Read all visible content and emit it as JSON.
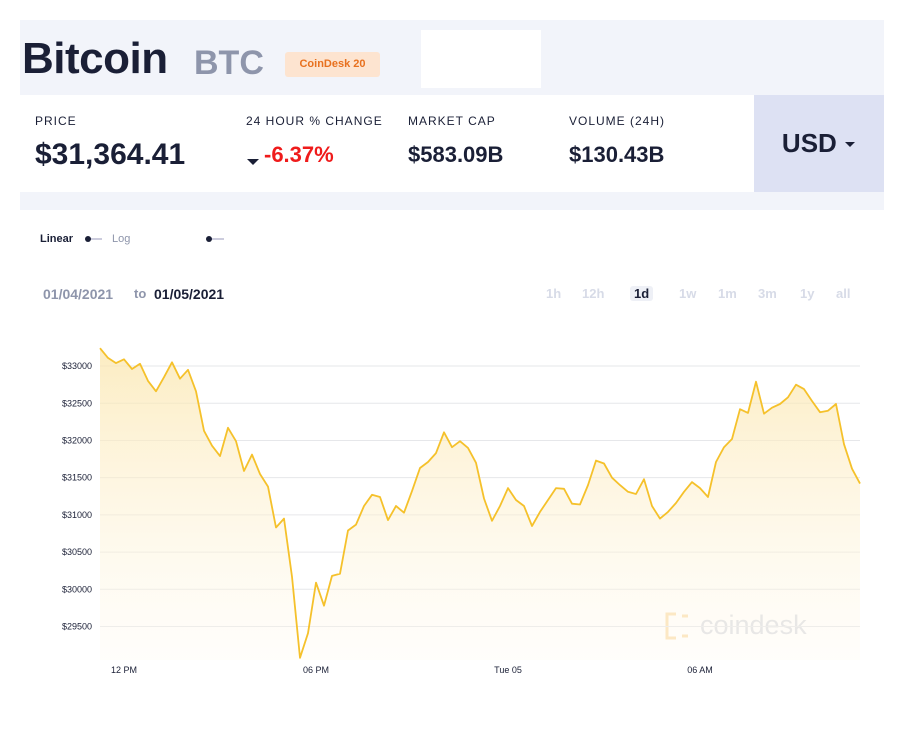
{
  "header": {
    "title": "Bitcoin",
    "symbol": "BTC",
    "badge": "CoinDesk 20"
  },
  "stats": [
    {
      "label": "PRICE",
      "value": "$31,364.41"
    },
    {
      "label": "24 HOUR % CHANGE",
      "value": "-6.37%"
    },
    {
      "label": "MARKET CAP",
      "value": "$583.09B"
    },
    {
      "label": "VOLUME (24H)",
      "value": "$130.43B"
    }
  ],
  "currency": "USD",
  "scale_toggle": {
    "linear": "Linear",
    "log": "Log"
  },
  "date_range": {
    "from": "01/04/2021",
    "separator": "to",
    "to": "01/05/2021"
  },
  "ranges": [
    "1h",
    "12h",
    "1d",
    "1w",
    "1m",
    "3m",
    "1y",
    "all"
  ],
  "watermark": "coindesk",
  "chart_data": {
    "type": "line",
    "color": "#f5c12b",
    "grid": true,
    "xlim": [
      11.25,
      35
    ],
    "ylim": [
      29050,
      33350
    ],
    "xticks": [
      {
        "value": 12,
        "label": "12 PM"
      },
      {
        "value": 18,
        "label": "06 PM"
      },
      {
        "value": 24,
        "label": "Tue 05"
      },
      {
        "value": 30,
        "label": "06 AM"
      }
    ],
    "yticks": [
      {
        "value": 29500,
        "label": "$29500"
      },
      {
        "value": 30000,
        "label": "$30000"
      },
      {
        "value": 30500,
        "label": "$30500"
      },
      {
        "value": 31000,
        "label": "$31000"
      },
      {
        "value": 31500,
        "label": "$31500"
      },
      {
        "value": 32000,
        "label": "$32000"
      },
      {
        "value": 32500,
        "label": "$32500"
      },
      {
        "value": 33000,
        "label": "$33000"
      }
    ],
    "x": [
      11.25,
      11.5,
      11.75,
      12,
      12.25,
      12.5,
      12.75,
      13,
      13.25,
      13.5,
      13.75,
      14,
      14.25,
      14.5,
      14.75,
      15,
      15.25,
      15.5,
      15.75,
      16,
      16.25,
      16.5,
      16.75,
      17,
      17.25,
      17.5,
      17.75,
      18,
      18.25,
      18.5,
      18.75,
      19,
      19.25,
      19.5,
      19.75,
      20,
      20.25,
      20.5,
      20.75,
      21,
      21.25,
      21.5,
      21.75,
      22,
      22.25,
      22.5,
      22.75,
      23,
      23.25,
      23.5,
      23.75,
      24,
      24.25,
      24.5,
      24.75,
      25,
      25.25,
      25.5,
      25.75,
      26,
      26.25,
      26.5,
      26.75,
      27,
      27.25,
      27.5,
      27.75,
      28,
      28.25,
      28.5,
      28.75,
      29,
      29.25,
      29.5,
      29.75,
      30,
      30.25,
      30.5,
      30.75,
      31,
      31.25,
      31.5,
      31.75,
      32,
      32.25,
      32.5,
      32.75,
      33,
      33.25,
      33.5,
      33.75,
      34,
      34.25,
      34.5,
      34.75,
      35
    ],
    "values": [
      33240,
      33110,
      33040,
      33090,
      32960,
      33030,
      32800,
      32660,
      32850,
      33050,
      32830,
      32950,
      32660,
      32130,
      31930,
      31790,
      32170,
      31990,
      31590,
      31810,
      31550,
      31380,
      30830,
      30950,
      30170,
      29080,
      29410,
      30090,
      29780,
      30180,
      30210,
      30790,
      30870,
      31120,
      31270,
      31240,
      30930,
      31120,
      31030,
      31320,
      31630,
      31710,
      31830,
      32110,
      31910,
      31990,
      31900,
      31700,
      31220,
      30920,
      31120,
      31360,
      31200,
      31120,
      30850,
      31040,
      31200,
      31360,
      31350,
      31150,
      31140,
      31400,
      31730,
      31690,
      31500,
      31400,
      31310,
      31280,
      31480,
      31120,
      30950,
      31040,
      31160,
      31310,
      31440,
      31360,
      31240,
      31710,
      31910,
      32020,
      32420,
      32370,
      32790,
      32360,
      32440,
      32490,
      32580,
      32750,
      32690,
      32530,
      32380,
      32400,
      32490,
      31950,
      31620,
      31420
    ]
  }
}
